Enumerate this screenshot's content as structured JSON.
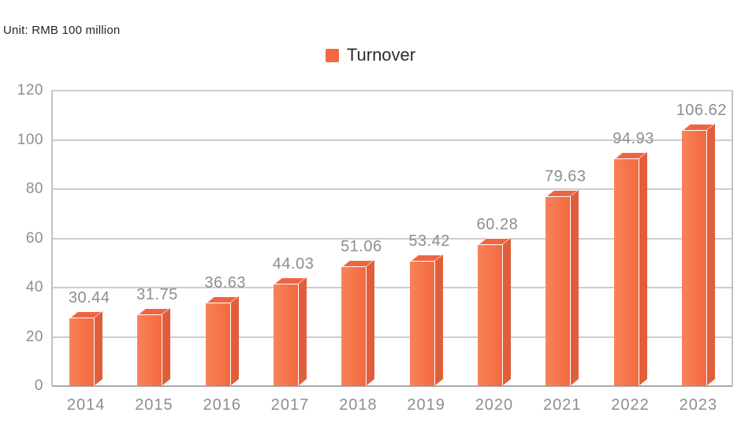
{
  "header": {
    "unit_label": "Unit: RMB 100 million"
  },
  "legend": {
    "items": [
      {
        "label": "Turnover",
        "color": "#f4683f"
      }
    ]
  },
  "chart_data": {
    "type": "bar",
    "title": "",
    "series": [
      {
        "name": "Turnover",
        "values": [
          30.44,
          31.75,
          36.63,
          44.03,
          51.06,
          53.42,
          60.28,
          79.63,
          94.93,
          106.62
        ]
      }
    ],
    "categories": [
      "2014",
      "2015",
      "2016",
      "2017",
      "2018",
      "2019",
      "2020",
      "2021",
      "2022",
      "2023"
    ],
    "xlabel": "",
    "ylabel": "",
    "unit": "RMB 100 million",
    "ylim": [
      0,
      120
    ],
    "yticks": [
      0,
      20,
      40,
      60,
      80,
      100,
      120
    ],
    "grid": true,
    "legend_position": "top-center",
    "value_labels_shown": true,
    "colors": {
      "bar_front_light": "#f8825a",
      "bar_front": "#f3693f",
      "bar_side": "#e05e3a",
      "bar_top": "#ef6543",
      "edge": "#ffffff",
      "gridline": "#cdcdcd",
      "axis_line": "#a8a8a8",
      "border_line": "#c2c2c2",
      "tick_label": "#8e8e8e",
      "legend_text": "#2d2d2d"
    }
  }
}
